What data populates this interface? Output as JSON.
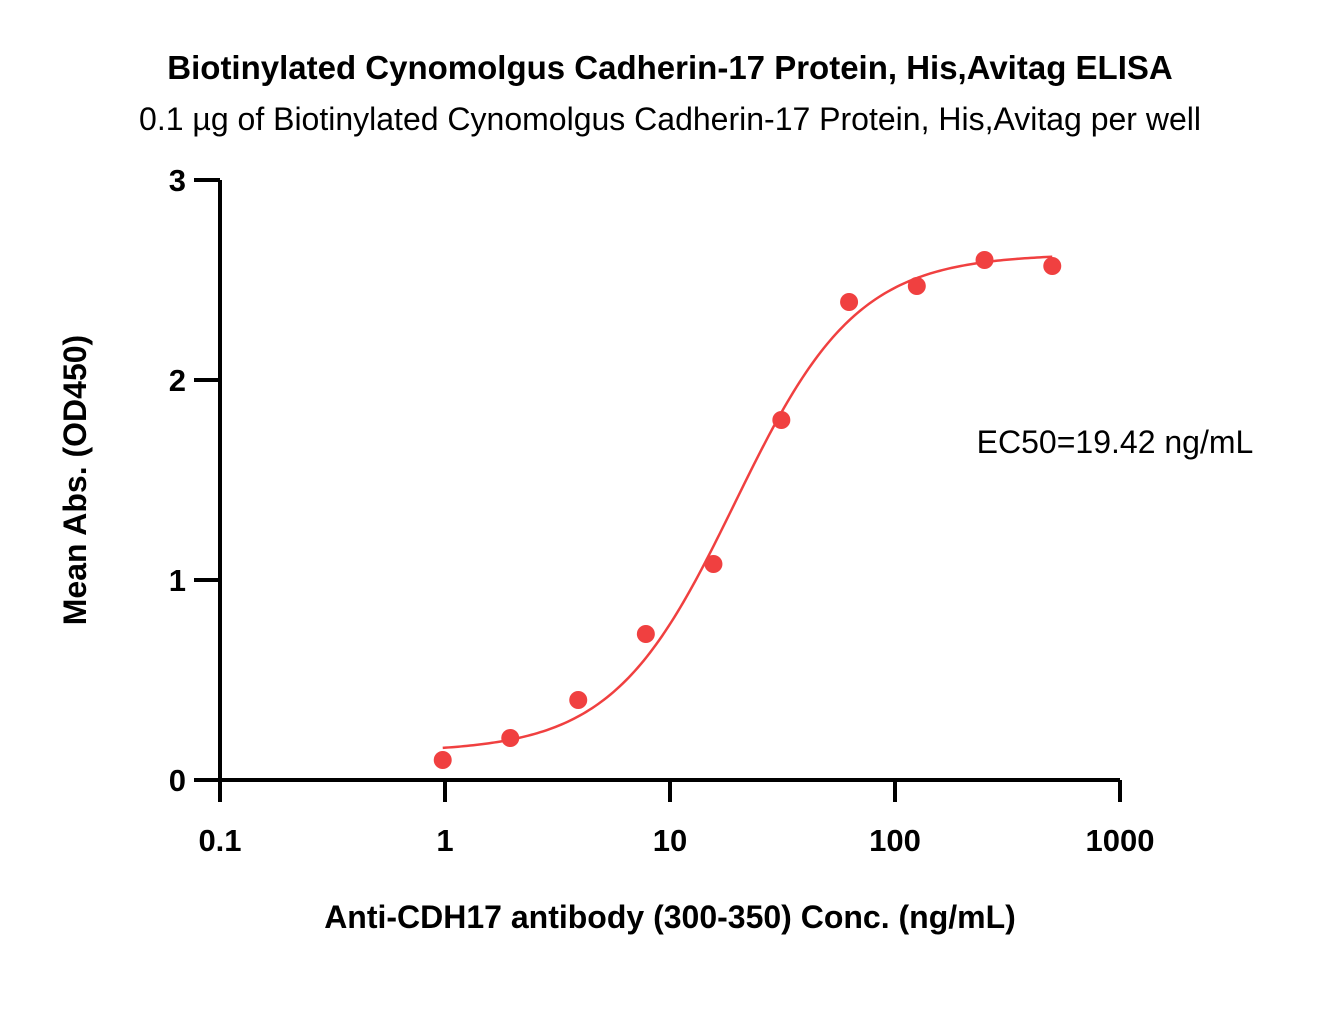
{
  "chart_data": {
    "type": "scatter",
    "title": "Biotinylated Cynomolgus Cadherin-17 Protein, His,Avitag ELISA",
    "subtitle": "0.1 µg of Biotinylated Cynomolgus Cadherin-17 Protein, His,Avitag per well",
    "xlabel": "Anti-CDH17 antibody (300-350) Conc. (ng/mL)",
    "ylabel": "Mean Abs. (OD450)",
    "xscale": "log",
    "xlim": [
      0.1,
      1000
    ],
    "ylim": [
      0,
      3
    ],
    "x_ticks": [
      0.1,
      1,
      10,
      100,
      1000
    ],
    "x_tick_labels": [
      "0.1",
      "1",
      "10",
      "100",
      "1000"
    ],
    "y_ticks": [
      0,
      1,
      2,
      3
    ],
    "y_tick_labels": [
      "0",
      "1",
      "2",
      "3"
    ],
    "grid": false,
    "annotation": "EC50=19.42 ng/mL",
    "series": [
      {
        "color": "#f04040",
        "points": [
          {
            "x": 0.977,
            "y": 0.1
          },
          {
            "x": 1.95,
            "y": 0.21
          },
          {
            "x": 3.91,
            "y": 0.4
          },
          {
            "x": 7.81,
            "y": 0.73
          },
          {
            "x": 15.6,
            "y": 1.08
          },
          {
            "x": 31.25,
            "y": 1.8
          },
          {
            "x": 62.5,
            "y": 2.39
          },
          {
            "x": 125,
            "y": 2.47
          },
          {
            "x": 250,
            "y": 2.6
          },
          {
            "x": 500,
            "y": 2.57
          }
        ],
        "fit": {
          "model": "4PL",
          "bottom": 0.14,
          "top": 2.63,
          "ec50": 19.42,
          "hill": 1.6,
          "x_range": [
            0.977,
            500
          ]
        }
      }
    ]
  }
}
